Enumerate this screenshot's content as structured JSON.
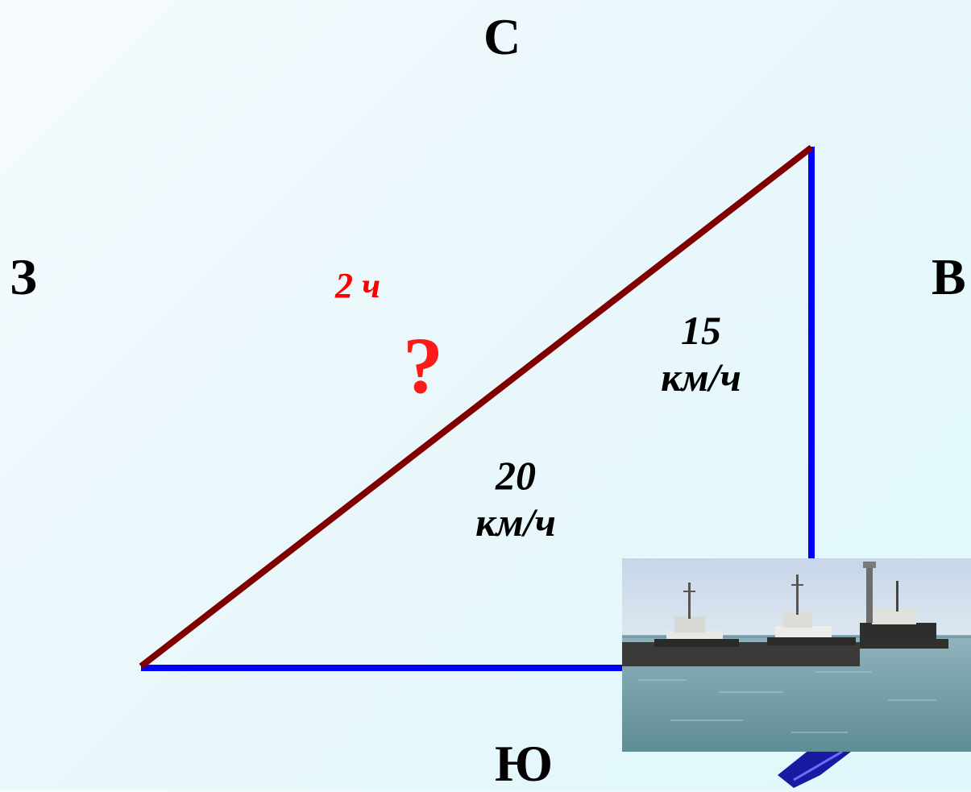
{
  "compass": {
    "north": "С",
    "west": "З",
    "east": "В",
    "south": "Ю"
  },
  "labels": {
    "time": "2 ч",
    "unknown": "?",
    "speed_north_value": "15",
    "speed_north_unit": "км/ч",
    "speed_east_value": "20",
    "speed_east_unit": "км/ч"
  },
  "colors": {
    "hypotenuse": "#800000",
    "legs": "#0000ff",
    "time_label": "#ff0000",
    "question_mark": "#ff1a1a"
  },
  "photo": {
    "subject": "ships-in-harbor"
  }
}
